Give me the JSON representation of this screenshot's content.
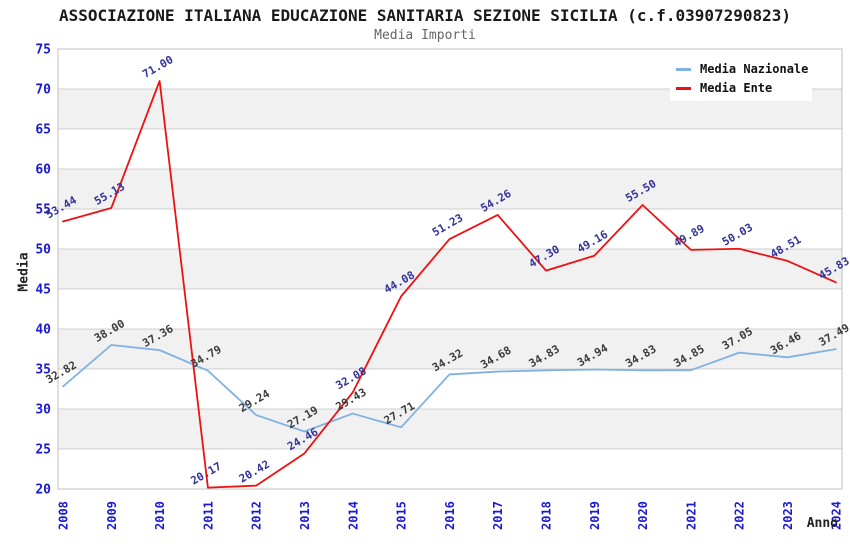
{
  "header": {
    "title": "ASSOCIAZIONE ITALIANA EDUCAZIONE SANITARIA SEZIONE SICILIA (c.f.03907290823)",
    "subtitle": "Media Importi"
  },
  "chart_data": {
    "type": "line",
    "title": "ASSOCIAZIONE ITALIANA EDUCAZIONE SANITARIA SEZIONE SICILIA (c.f.03907290823)",
    "subtitle": "Media Importi",
    "xlabel": "Anno",
    "ylabel": "Media",
    "categories": [
      "2008",
      "2009",
      "2010",
      "2011",
      "2012",
      "2013",
      "2014",
      "2015",
      "2016",
      "2017",
      "2018",
      "2019",
      "2020",
      "2021",
      "2022",
      "2023",
      "2024"
    ],
    "series": [
      {
        "name": "Media Nazionale",
        "color": "#7fb2e3",
        "label_color": "#3b3b3b",
        "values": [
          32.82,
          38.0,
          37.36,
          34.79,
          29.24,
          27.19,
          29.43,
          27.71,
          34.32,
          34.68,
          34.83,
          34.94,
          34.83,
          34.85,
          37.05,
          36.46,
          37.49
        ]
      },
      {
        "name": "Media Ente",
        "color": "#ee1111",
        "label_color": "#333399",
        "values": [
          53.44,
          55.13,
          71.0,
          20.17,
          20.42,
          24.46,
          32.08,
          44.08,
          51.23,
          54.26,
          47.3,
          49.16,
          55.5,
          49.89,
          50.03,
          48.51,
          45.83
        ]
      }
    ],
    "ylim": [
      20,
      75
    ],
    "ytick_step": 5,
    "grid": true,
    "legend_position": "top-right",
    "value_decimals": 2,
    "axis_tick_color": "#1a1ad2",
    "band_color": "#f1f1f1",
    "grid_color": "#cfcfcf",
    "border_color": "#c0c0c0"
  }
}
